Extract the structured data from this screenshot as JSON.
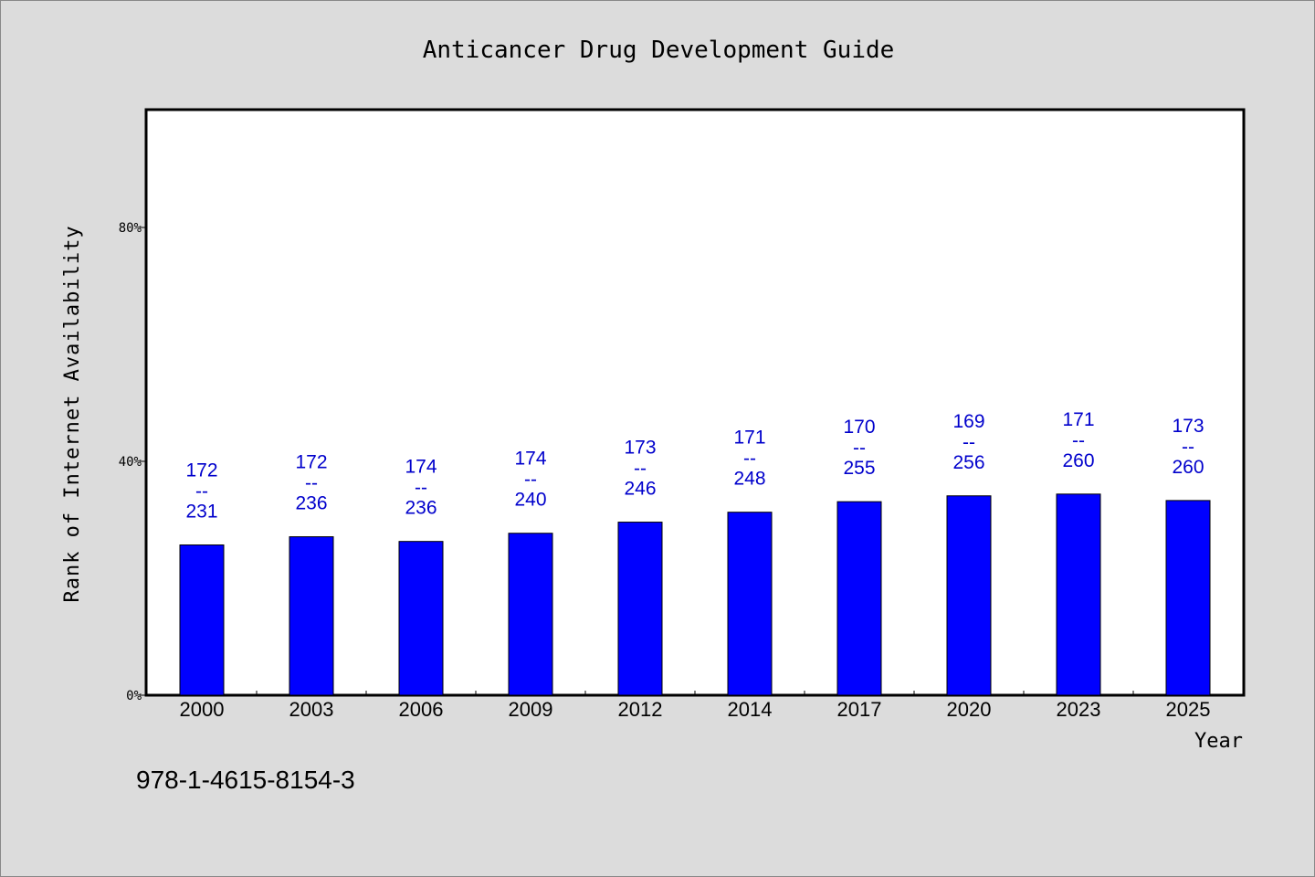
{
  "chart_data": {
    "type": "bar",
    "title": "Anticancer Drug Development Guide",
    "xlabel": "Year",
    "ylabel": "Rank of Internet Availability",
    "ylim": [
      0,
      100
    ],
    "yticks": [
      0,
      40,
      80
    ],
    "ytick_labels": [
      "0%",
      "40%",
      "80%"
    ],
    "categories": [
      "2000",
      "2003",
      "2006",
      "2009",
      "2012",
      "2014",
      "2017",
      "2020",
      "2023",
      "2025"
    ],
    "values": [
      25.7,
      27.1,
      26.3,
      27.7,
      29.6,
      31.3,
      33.1,
      34.1,
      34.4,
      33.3
    ],
    "data_labels": [
      {
        "top": "172",
        "sep": "--",
        "bottom": "231"
      },
      {
        "top": "172",
        "sep": "--",
        "bottom": "236"
      },
      {
        "top": "174",
        "sep": "--",
        "bottom": "236"
      },
      {
        "top": "174",
        "sep": "--",
        "bottom": "240"
      },
      {
        "top": "173",
        "sep": "--",
        "bottom": "246"
      },
      {
        "top": "171",
        "sep": "--",
        "bottom": "248"
      },
      {
        "top": "170",
        "sep": "--",
        "bottom": "255"
      },
      {
        "top": "169",
        "sep": "--",
        "bottom": "256"
      },
      {
        "top": "171",
        "sep": "--",
        "bottom": "260"
      },
      {
        "top": "173",
        "sep": "--",
        "bottom": "260"
      }
    ],
    "bar_color": "#0000ff",
    "label_color": "#0000cc",
    "grid": false
  },
  "footer": {
    "isbn": "978-1-4615-8154-3"
  }
}
